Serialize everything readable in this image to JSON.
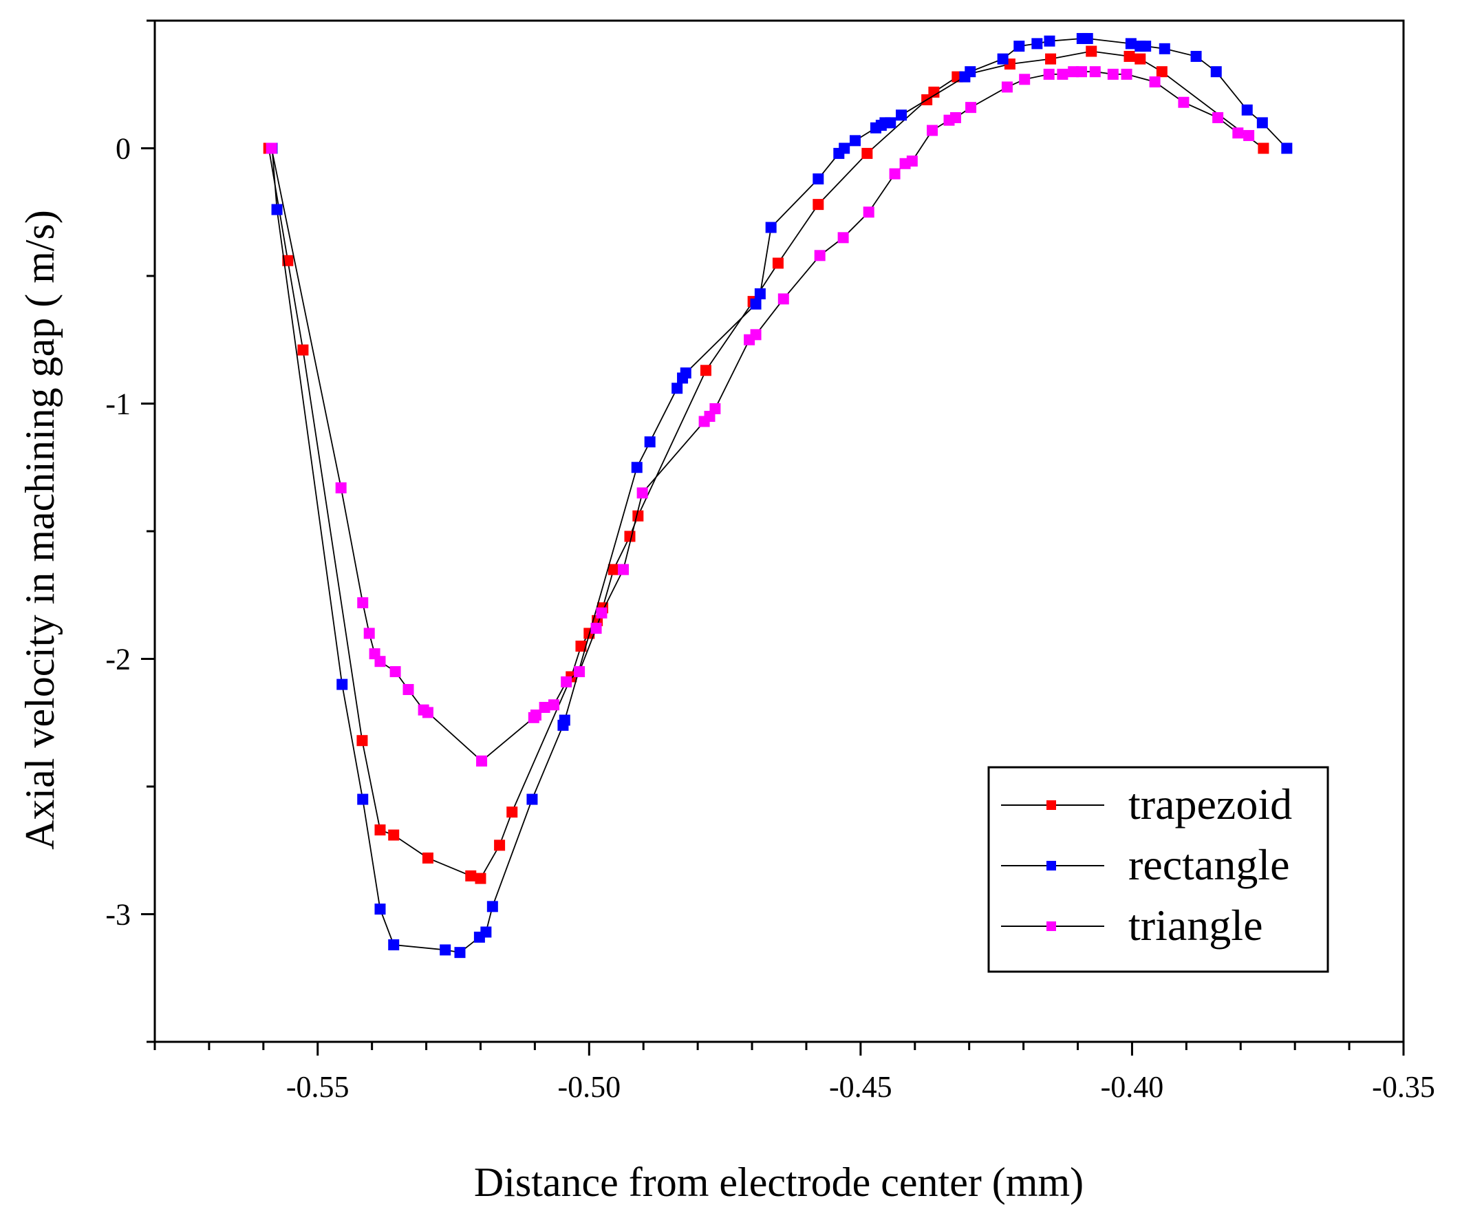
{
  "chart_data": {
    "type": "line",
    "title": "",
    "xlabel": "Distance from electrode center (mm)",
    "ylabel": "Axial velocity  in machining gap ( m/s)",
    "xlim": [
      -0.58,
      -0.35
    ],
    "ylim": [
      -3.5,
      0.5
    ],
    "xticks": [
      -0.55,
      -0.5,
      -0.45,
      -0.4,
      -0.35
    ],
    "xtick_labels": [
      "-0.55",
      "-0.50",
      "-0.45",
      "-0.40",
      "-0.35"
    ],
    "yticks": [
      0,
      -1,
      -2,
      -3
    ],
    "ytick_labels": [
      "0",
      "-1",
      "-2",
      "-3"
    ],
    "grid": false,
    "legend_position": "bottom-right",
    "series": [
      {
        "name": "trapezoid",
        "color": "#ff0000",
        "points": [
          [
            -0.559,
            0
          ],
          [
            -0.5555,
            -0.44
          ],
          [
            -0.5527,
            -0.79
          ],
          [
            -0.5418,
            -2.32
          ],
          [
            -0.5385,
            -2.67
          ],
          [
            -0.536,
            -2.69
          ],
          [
            -0.5297,
            -2.78
          ],
          [
            -0.5218,
            -2.85
          ],
          [
            -0.52,
            -2.86
          ],
          [
            -0.5165,
            -2.73
          ],
          [
            -0.5142,
            -2.6
          ],
          [
            -0.5033,
            -2.07
          ],
          [
            -0.5015,
            -1.95
          ],
          [
            -0.5,
            -1.9
          ],
          [
            -0.4985,
            -1.85
          ],
          [
            -0.4975,
            -1.8
          ],
          [
            -0.4955,
            -1.65
          ],
          [
            -0.4925,
            -1.52
          ],
          [
            -0.491,
            -1.44
          ],
          [
            -0.4785,
            -0.87
          ],
          [
            -0.4698,
            -0.6
          ],
          [
            -0.4652,
            -0.45
          ],
          [
            -0.4578,
            -0.22
          ],
          [
            -0.4488,
            -0.02
          ],
          [
            -0.4378,
            0.19
          ],
          [
            -0.4365,
            0.22
          ],
          [
            -0.4322,
            0.28
          ],
          [
            -0.4225,
            0.33
          ],
          [
            -0.415,
            0.35
          ],
          [
            -0.4075,
            0.38
          ],
          [
            -0.4005,
            0.36
          ],
          [
            -0.3985,
            0.35
          ],
          [
            -0.3945,
            0.3
          ],
          [
            -0.3758,
            0
          ]
        ]
      },
      {
        "name": "rectangle",
        "color": "#0000ff",
        "points": [
          [
            -0.5584,
            0
          ],
          [
            -0.5575,
            -0.24
          ],
          [
            -0.5455,
            -2.1
          ],
          [
            -0.5417,
            -2.55
          ],
          [
            -0.5385,
            -2.98
          ],
          [
            -0.536,
            -3.12
          ],
          [
            -0.5265,
            -3.14
          ],
          [
            -0.5238,
            -3.15
          ],
          [
            -0.5202,
            -3.09
          ],
          [
            -0.519,
            -3.07
          ],
          [
            -0.5178,
            -2.97
          ],
          [
            -0.5105,
            -2.55
          ],
          [
            -0.5048,
            -2.26
          ],
          [
            -0.5045,
            -2.24
          ],
          [
            -0.4912,
            -1.25
          ],
          [
            -0.4888,
            -1.15
          ],
          [
            -0.4838,
            -0.94
          ],
          [
            -0.4828,
            -0.9
          ],
          [
            -0.4822,
            -0.88
          ],
          [
            -0.4693,
            -0.61
          ],
          [
            -0.4685,
            -0.57
          ],
          [
            -0.4665,
            -0.31
          ],
          [
            -0.4578,
            -0.12
          ],
          [
            -0.454,
            -0.02
          ],
          [
            -0.453,
            0.0
          ],
          [
            -0.451,
            0.03
          ],
          [
            -0.4472,
            0.08
          ],
          [
            -0.4462,
            0.09
          ],
          [
            -0.4455,
            0.1
          ],
          [
            -0.4445,
            0.1
          ],
          [
            -0.4425,
            0.13
          ],
          [
            -0.4308,
            0.28
          ],
          [
            -0.4298,
            0.3
          ],
          [
            -0.4238,
            0.35
          ],
          [
            -0.4208,
            0.4
          ],
          [
            -0.4175,
            0.41
          ],
          [
            -0.4152,
            0.42
          ],
          [
            -0.4092,
            0.43
          ],
          [
            -0.4082,
            0.43
          ],
          [
            -0.4002,
            0.41
          ],
          [
            -0.3985,
            0.4
          ],
          [
            -0.3975,
            0.4
          ],
          [
            -0.394,
            0.39
          ],
          [
            -0.3882,
            0.36
          ],
          [
            -0.3845,
            0.3
          ],
          [
            -0.3788,
            0.15
          ],
          [
            -0.376,
            0.1
          ],
          [
            -0.3715,
            0
          ]
        ]
      },
      {
        "name": "triangle",
        "color": "#ff00ff",
        "points": [
          [
            -0.5585,
            0
          ],
          [
            -0.5457,
            -1.33
          ],
          [
            -0.5417,
            -1.78
          ],
          [
            -0.5405,
            -1.9
          ],
          [
            -0.5395,
            -1.98
          ],
          [
            -0.5385,
            -2.01
          ],
          [
            -0.5357,
            -2.05
          ],
          [
            -0.5333,
            -2.12
          ],
          [
            -0.5305,
            -2.2
          ],
          [
            -0.5297,
            -2.21
          ],
          [
            -0.5198,
            -2.4
          ],
          [
            -0.5102,
            -2.23
          ],
          [
            -0.5098,
            -2.22
          ],
          [
            -0.5082,
            -2.19
          ],
          [
            -0.5065,
            -2.18
          ],
          [
            -0.5042,
            -2.09
          ],
          [
            -0.5018,
            -2.05
          ],
          [
            -0.4987,
            -1.88
          ],
          [
            -0.4977,
            -1.82
          ],
          [
            -0.4937,
            -1.65
          ],
          [
            -0.4902,
            -1.35
          ],
          [
            -0.4788,
            -1.07
          ],
          [
            -0.4778,
            -1.05
          ],
          [
            -0.4768,
            -1.02
          ],
          [
            -0.4705,
            -0.75
          ],
          [
            -0.4693,
            -0.73
          ],
          [
            -0.4642,
            -0.59
          ],
          [
            -0.4575,
            -0.42
          ],
          [
            -0.4532,
            -0.35
          ],
          [
            -0.4485,
            -0.25
          ],
          [
            -0.4437,
            -0.1
          ],
          [
            -0.4418,
            -0.06
          ],
          [
            -0.4405,
            -0.05
          ],
          [
            -0.4368,
            0.07
          ],
          [
            -0.4337,
            0.11
          ],
          [
            -0.4325,
            0.12
          ],
          [
            -0.4297,
            0.16
          ],
          [
            -0.423,
            0.24
          ],
          [
            -0.4198,
            0.27
          ],
          [
            -0.4153,
            0.29
          ],
          [
            -0.4128,
            0.29
          ],
          [
            -0.4108,
            0.3
          ],
          [
            -0.4093,
            0.3
          ],
          [
            -0.4068,
            0.3
          ],
          [
            -0.4035,
            0.29
          ],
          [
            -0.401,
            0.29
          ],
          [
            -0.3958,
            0.26
          ],
          [
            -0.3905,
            0.18
          ],
          [
            -0.3842,
            0.12
          ],
          [
            -0.3805,
            0.06
          ],
          [
            -0.3785,
            0.05
          ]
        ]
      }
    ]
  }
}
